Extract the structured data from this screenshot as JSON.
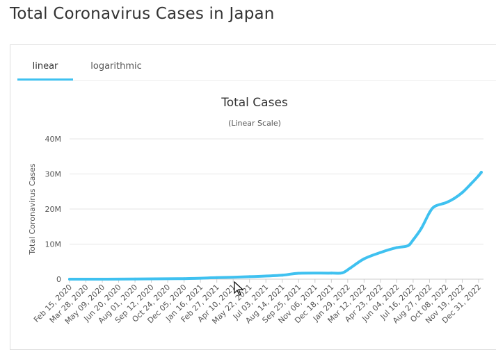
{
  "page": {
    "title": "Total Coronavirus Cases in Japan"
  },
  "tabs": [
    {
      "label": "linear",
      "active": true
    },
    {
      "label": "logarithmic",
      "active": false
    }
  ],
  "colors": {
    "line": "#3fc1f0",
    "grid": "#e6e6e6",
    "tab_accent": "#3fc1f0"
  },
  "chart_data": {
    "type": "line",
    "title": "Total Cases",
    "subtitle": "(Linear Scale)",
    "ylabel": "Total Coronavirus Cases",
    "xlabel": "",
    "ylim": [
      0,
      40000000
    ],
    "yticks": [
      0,
      10000000,
      20000000,
      30000000,
      40000000
    ],
    "ytick_labels": [
      "0",
      "10M",
      "20M",
      "30M",
      "40M"
    ],
    "grid": true,
    "legend": "none",
    "xtick_labels": [
      "Feb 15, 2020",
      "Mar 28, 2020",
      "May 09, 2020",
      "Jun 20, 2020",
      "Aug 01, 2020",
      "Sep 12, 2020",
      "Oct 24, 2020",
      "Dec 05, 2020",
      "Jan 16, 2021",
      "Feb 27, 2021",
      "Apr 10, 2021",
      "May 22, 2021",
      "Jul 03, 2021",
      "Aug 14, 2021",
      "Sep 25, 2021",
      "Nov 06, 2021",
      "Dec 18, 2021",
      "Jan 29, 2022",
      "Mar 12, 2022",
      "Apr 23, 2022",
      "Jun 04, 2022",
      "Jul 16, 2022",
      "Aug 27, 2022",
      "Oct 08, 2022",
      "Nov 19, 2022",
      "Dec 31, 2022"
    ],
    "series": [
      {
        "x": [
          "2020-02-15",
          "2020-08-01",
          "2020-12-05",
          "2021-02-27",
          "2021-05-22",
          "2021-08-14",
          "2021-09-25",
          "2021-12-18",
          "2022-01-15",
          "2022-02-05",
          "2022-03-12",
          "2022-04-23",
          "2022-06-04",
          "2022-07-02",
          "2022-07-16",
          "2022-08-06",
          "2022-08-27",
          "2022-09-10",
          "2022-10-08",
          "2022-10-29",
          "2022-11-19",
          "2022-12-10",
          "2022-12-31",
          "2023-01-07"
        ],
        "values": [
          0,
          35000,
          160000,
          430000,
          720000,
          1150000,
          1690000,
          1730000,
          1800000,
          3200000,
          5800000,
          7600000,
          9000000,
          9500000,
          11200000,
          14500000,
          19000000,
          20800000,
          21800000,
          23000000,
          24700000,
          27000000,
          29500000,
          30500000
        ]
      }
    ]
  }
}
